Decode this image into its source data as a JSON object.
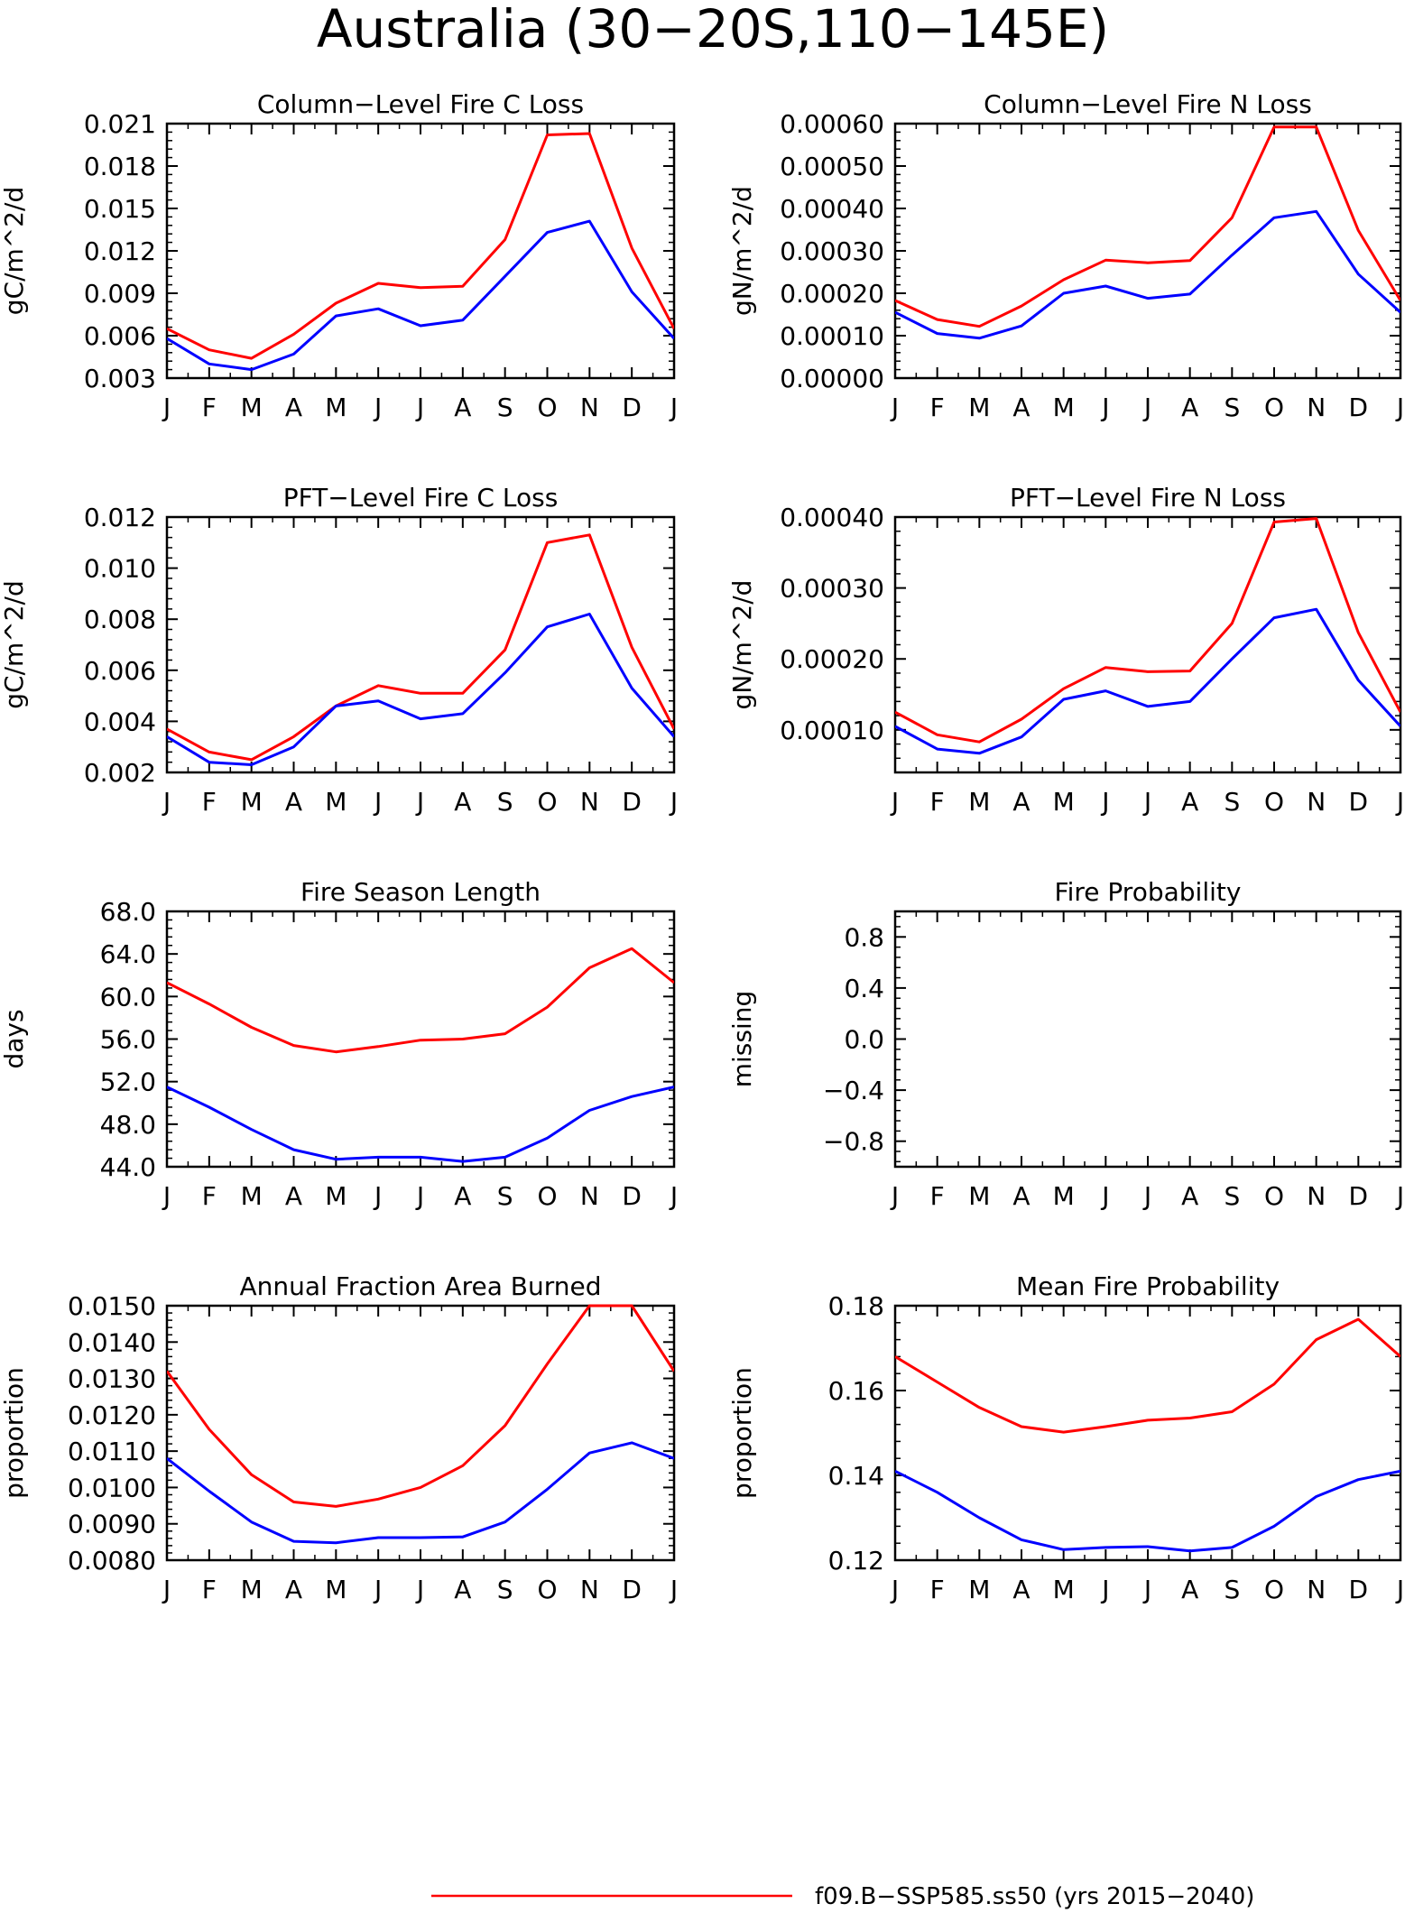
{
  "figure": {
    "title": "Australia (30−20S,110−145E)",
    "legend": [
      {
        "name": "f09.B−SSP585.ss50 (yrs 2015−2040)",
        "color": "#ff0000"
      }
    ]
  },
  "colors": {
    "series_1": "#ff0000",
    "series_2": "#0000ff"
  },
  "chart_data": [
    {
      "type": "line",
      "title": "Column−Level Fire C Loss",
      "xlabel": "",
      "ylabel": "gC/m^2/d",
      "x": [
        "J",
        "F",
        "M",
        "A",
        "M",
        "J",
        "J",
        "A",
        "S",
        "O",
        "N",
        "D",
        "J"
      ],
      "ylim": [
        0.003,
        0.021
      ],
      "yticks": [
        0.003,
        0.006,
        0.009,
        0.012,
        0.015,
        0.018,
        0.021
      ],
      "ytick_labels": [
        "0.003",
        "0.006",
        "0.009",
        "0.012",
        "0.015",
        "0.018",
        "0.021"
      ],
      "series": [
        {
          "color": "#ff0000",
          "values": [
            0.0065,
            0.005,
            0.0044,
            0.0061,
            0.0083,
            0.0097,
            0.0094,
            0.0095,
            0.0128,
            0.0202,
            0.0203,
            0.0122,
            0.0065
          ]
        },
        {
          "color": "#0000ff",
          "values": [
            0.0058,
            0.004,
            0.0036,
            0.0047,
            0.0074,
            0.0079,
            0.0067,
            0.0071,
            0.0102,
            0.0133,
            0.0141,
            0.0091,
            0.0058
          ]
        }
      ]
    },
    {
      "type": "line",
      "title": "Column−Level Fire N Loss",
      "xlabel": "",
      "ylabel": "gN/m^2/d",
      "x": [
        "J",
        "F",
        "M",
        "A",
        "M",
        "J",
        "J",
        "A",
        "S",
        "O",
        "N",
        "D",
        "J"
      ],
      "ylim": [
        0.0,
        0.0006
      ],
      "yticks": [
        0.0,
        0.0001,
        0.0002,
        0.0003,
        0.0004,
        0.0005,
        0.0006
      ],
      "ytick_labels": [
        "0.00000",
        "0.00010",
        "0.00020",
        "0.00030",
        "0.00040",
        "0.00050",
        "0.00060"
      ],
      "series": [
        {
          "color": "#ff0000",
          "values": [
            0.000183,
            0.000138,
            0.000122,
            0.00017,
            0.000232,
            0.000278,
            0.000272,
            0.000277,
            0.000378,
            0.000592,
            0.000592,
            0.000348,
            0.000183
          ]
        },
        {
          "color": "#0000ff",
          "values": [
            0.000155,
            0.000105,
            9.4e-05,
            0.000123,
            0.0002,
            0.000217,
            0.000188,
            0.000198,
            0.00029,
            0.000378,
            0.000393,
            0.000245,
            0.000155
          ]
        }
      ]
    },
    {
      "type": "line",
      "title": "PFT−Level Fire C Loss",
      "xlabel": "",
      "ylabel": "gC/m^2/d",
      "x": [
        "J",
        "F",
        "M",
        "A",
        "M",
        "J",
        "J",
        "A",
        "S",
        "O",
        "N",
        "D",
        "J"
      ],
      "ylim": [
        0.002,
        0.012
      ],
      "yticks": [
        0.002,
        0.004,
        0.006,
        0.008,
        0.01,
        0.012
      ],
      "ytick_labels": [
        "0.002",
        "0.004",
        "0.006",
        "0.008",
        "0.010",
        "0.012"
      ],
      "series": [
        {
          "color": "#ff0000",
          "values": [
            0.0037,
            0.0028,
            0.0025,
            0.0034,
            0.0046,
            0.0054,
            0.0051,
            0.0051,
            0.0068,
            0.011,
            0.0113,
            0.0069,
            0.0037
          ]
        },
        {
          "color": "#0000ff",
          "values": [
            0.0034,
            0.0024,
            0.0023,
            0.003,
            0.0046,
            0.0048,
            0.0041,
            0.0043,
            0.0059,
            0.0077,
            0.0082,
            0.0053,
            0.0034
          ]
        }
      ]
    },
    {
      "type": "line",
      "title": "PFT−Level Fire N Loss",
      "xlabel": "",
      "ylabel": "gN/m^2/d",
      "x": [
        "J",
        "F",
        "M",
        "A",
        "M",
        "J",
        "J",
        "A",
        "S",
        "O",
        "N",
        "D",
        "J"
      ],
      "ylim": [
        4e-05,
        0.0004
      ],
      "yticks": [
        0.0001,
        0.0002,
        0.0003,
        0.0004
      ],
      "ytick_labels": [
        "0.00010",
        "0.00020",
        "0.00030",
        "0.00040"
      ],
      "series": [
        {
          "color": "#ff0000",
          "values": [
            0.000125,
            9.3e-05,
            8.3e-05,
            0.000115,
            0.000158,
            0.000188,
            0.000182,
            0.000183,
            0.00025,
            0.000393,
            0.000398,
            0.000237,
            0.000125
          ]
        },
        {
          "color": "#0000ff",
          "values": [
            0.000105,
            7.3e-05,
            6.7e-05,
            9e-05,
            0.000143,
            0.000155,
            0.000133,
            0.00014,
            0.0002,
            0.000258,
            0.00027,
            0.00017,
            0.000105
          ]
        }
      ]
    },
    {
      "type": "line",
      "title": "Fire Season Length",
      "xlabel": "",
      "ylabel": "days",
      "x": [
        "J",
        "F",
        "M",
        "A",
        "M",
        "J",
        "J",
        "A",
        "S",
        "O",
        "N",
        "D",
        "J"
      ],
      "ylim": [
        44.0,
        68.0
      ],
      "yticks": [
        44,
        48,
        52,
        56,
        60,
        64,
        68
      ],
      "ytick_labels": [
        "44.0",
        "48.0",
        "52.0",
        "56.0",
        "60.0",
        "64.0",
        "68.0"
      ],
      "series": [
        {
          "color": "#ff0000",
          "values": [
            61.3,
            59.3,
            57.1,
            55.4,
            54.8,
            55.3,
            55.9,
            56.0,
            56.5,
            59.0,
            62.7,
            64.5,
            61.3
          ]
        },
        {
          "color": "#0000ff",
          "values": [
            51.5,
            49.6,
            47.5,
            45.6,
            44.7,
            44.9,
            44.9,
            44.5,
            44.9,
            46.7,
            49.3,
            50.6,
            51.5
          ]
        }
      ]
    },
    {
      "type": "line",
      "title": "Fire Probability",
      "xlabel": "",
      "ylabel": "missing",
      "x": [
        "J",
        "F",
        "M",
        "A",
        "M",
        "J",
        "J",
        "A",
        "S",
        "O",
        "N",
        "D",
        "J"
      ],
      "ylim": [
        -1.0,
        1.0
      ],
      "yticks": [
        -0.8,
        -0.4,
        0.0,
        0.4,
        0.8
      ],
      "ytick_labels": [
        "−0.8",
        "−0.4",
        "0.0",
        "0.4",
        "0.8"
      ],
      "series": []
    },
    {
      "type": "line",
      "title": "Annual Fraction Area Burned",
      "xlabel": "",
      "ylabel": "proportion",
      "x": [
        "J",
        "F",
        "M",
        "A",
        "M",
        "J",
        "J",
        "A",
        "S",
        "O",
        "N",
        "D",
        "J"
      ],
      "ylim": [
        0.008,
        0.015
      ],
      "yticks": [
        0.008,
        0.009,
        0.01,
        0.011,
        0.012,
        0.013,
        0.014,
        0.015
      ],
      "ytick_labels": [
        "0.0080",
        "0.0090",
        "0.0100",
        "0.0110",
        "0.0120",
        "0.0130",
        "0.0140",
        "0.0150"
      ],
      "series": [
        {
          "color": "#ff0000",
          "values": [
            0.0132,
            0.0116,
            0.01035,
            0.0096,
            0.00948,
            0.00968,
            0.01,
            0.0106,
            0.0117,
            0.0134,
            0.015,
            0.015,
            0.0132
          ]
        },
        {
          "color": "#0000ff",
          "values": [
            0.0108,
            0.0099,
            0.00905,
            0.00852,
            0.00848,
            0.00862,
            0.00862,
            0.00864,
            0.00905,
            0.00995,
            0.01095,
            0.01123,
            0.0108
          ]
        }
      ]
    },
    {
      "type": "line",
      "title": "Mean Fire Probability",
      "xlabel": "",
      "ylabel": "proportion",
      "x": [
        "J",
        "F",
        "M",
        "A",
        "M",
        "J",
        "J",
        "A",
        "S",
        "O",
        "N",
        "D",
        "J"
      ],
      "ylim": [
        0.12,
        0.18
      ],
      "yticks": [
        0.12,
        0.14,
        0.16,
        0.18
      ],
      "ytick_labels": [
        "0.12",
        "0.14",
        "0.16",
        "0.18"
      ],
      "series": [
        {
          "color": "#ff0000",
          "values": [
            0.168,
            0.162,
            0.156,
            0.1515,
            0.1502,
            0.1515,
            0.153,
            0.1535,
            0.155,
            0.1615,
            0.172,
            0.1768,
            0.168
          ]
        },
        {
          "color": "#0000ff",
          "values": [
            0.141,
            0.136,
            0.13,
            0.1248,
            0.1225,
            0.123,
            0.1232,
            0.1222,
            0.123,
            0.128,
            0.135,
            0.139,
            0.141
          ]
        }
      ]
    }
  ]
}
